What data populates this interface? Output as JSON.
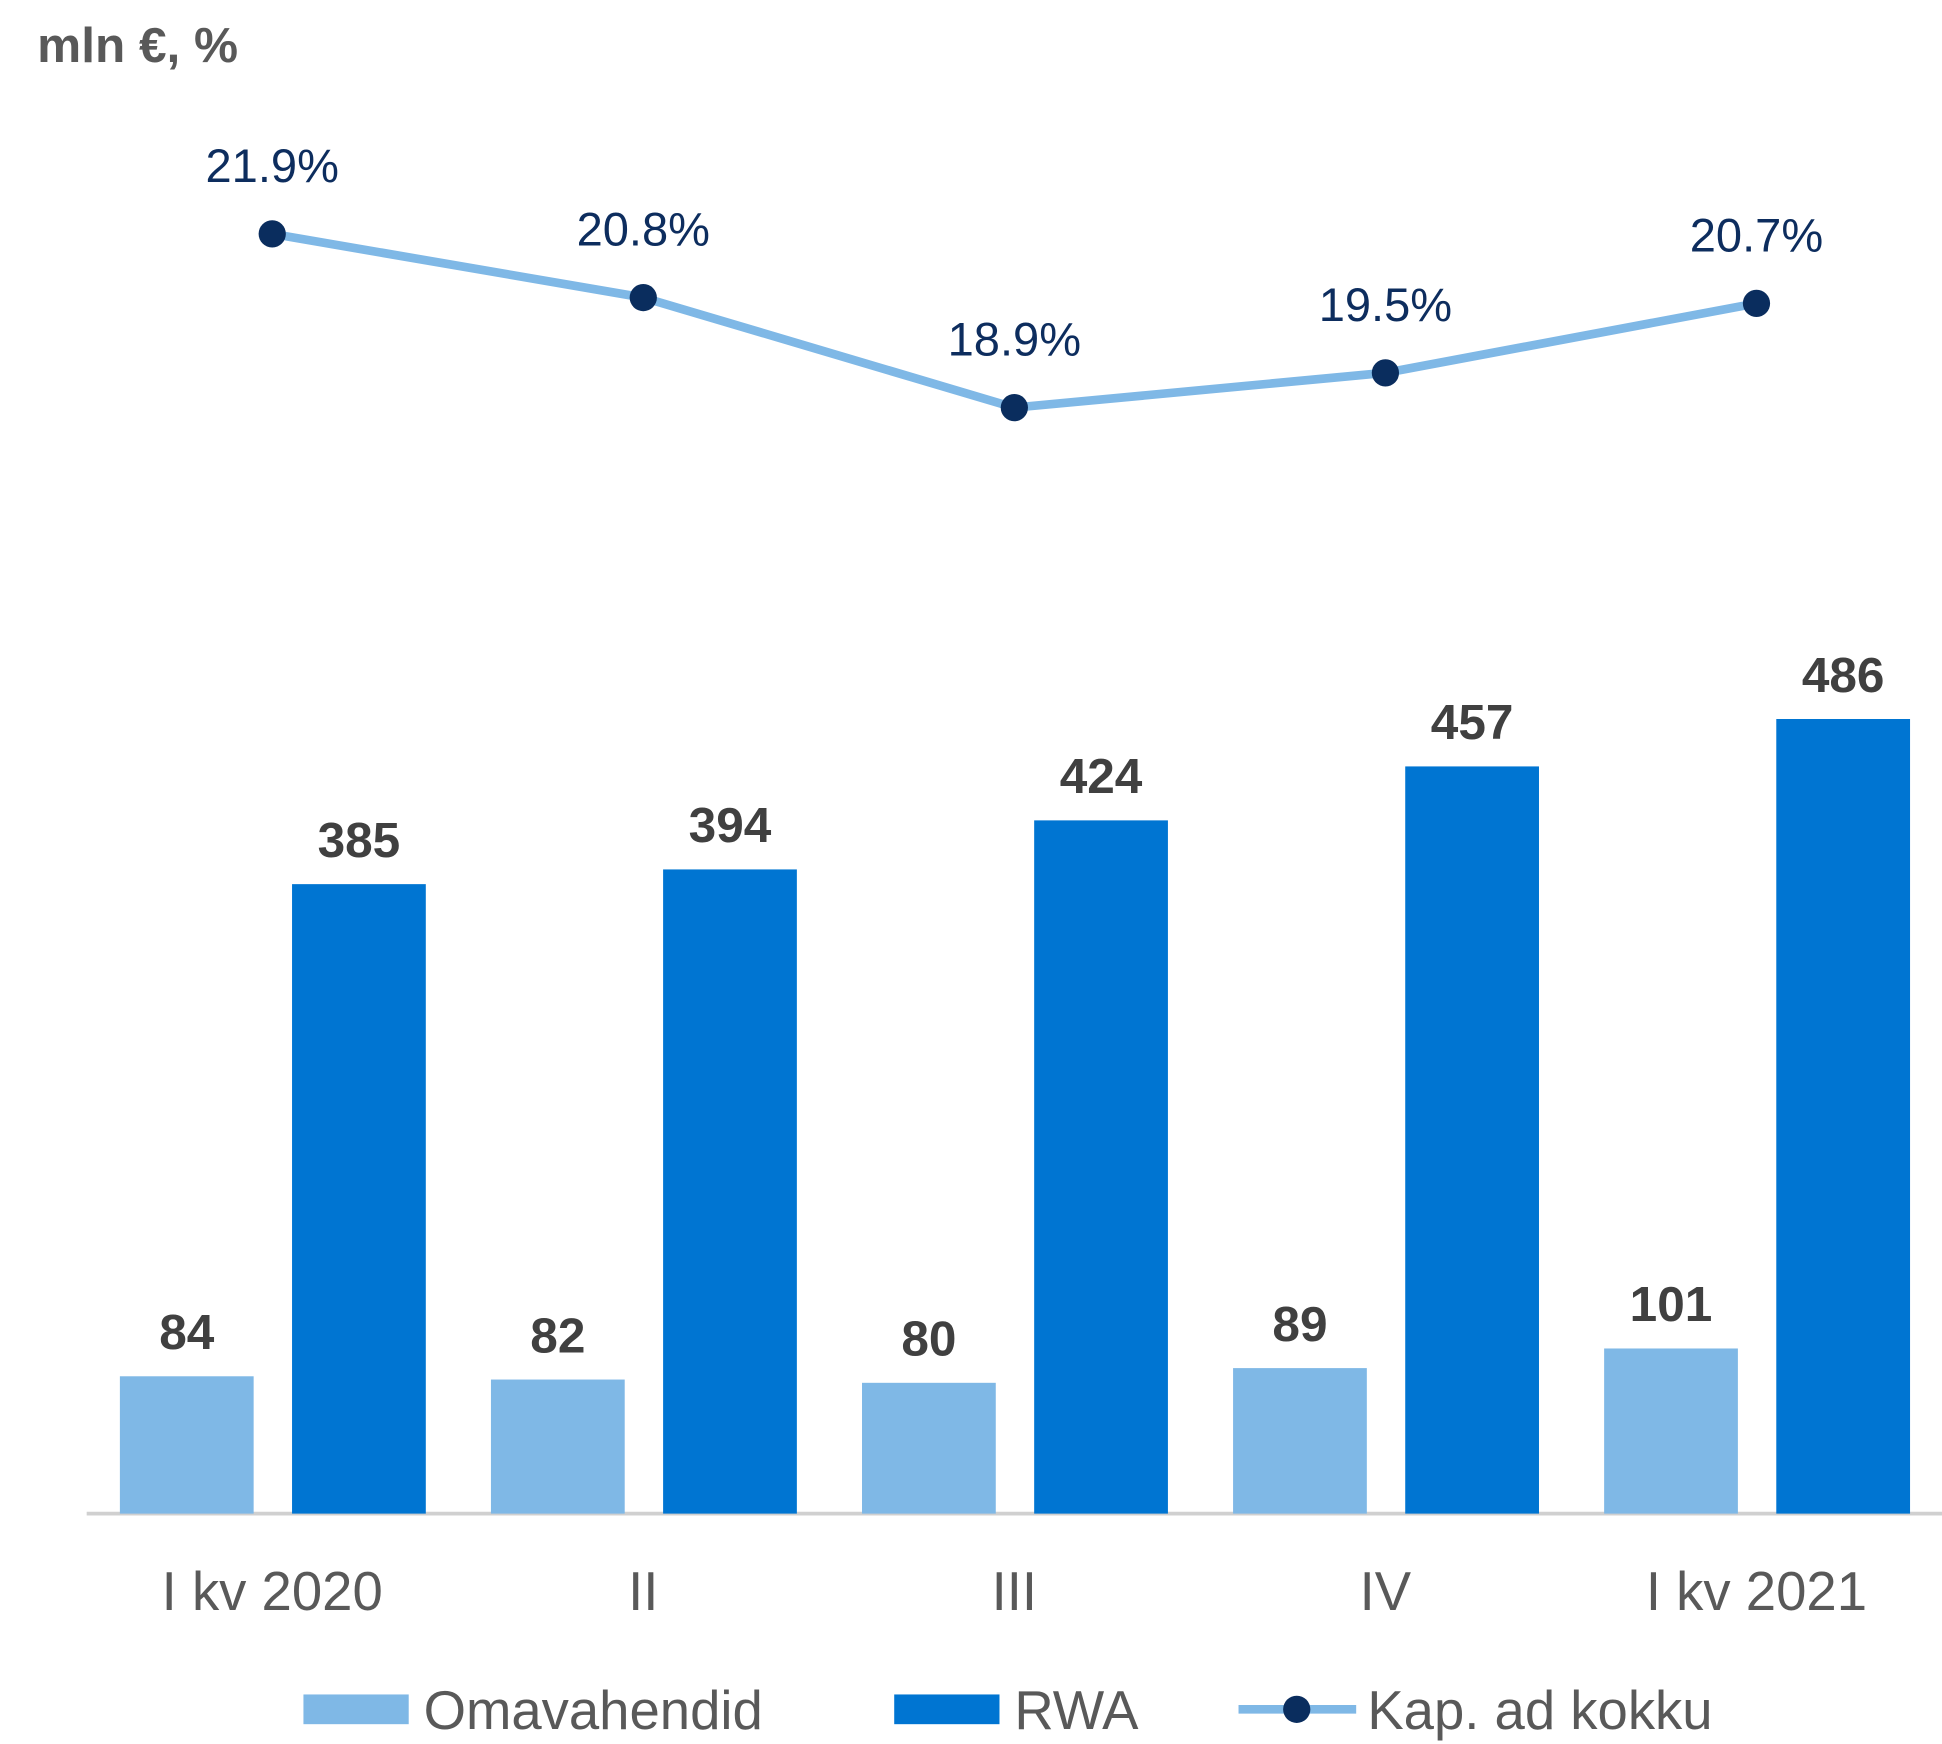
{
  "chart_data": {
    "type": "bar",
    "title": "mln €, %",
    "categories": [
      "I kv 2020",
      "II",
      "III",
      "IV",
      "I kv 2021"
    ],
    "series": [
      {
        "name": "Omavahendid",
        "color": "#7fb8e6",
        "values": [
          84,
          82,
          80,
          89,
          101
        ]
      },
      {
        "name": "RWA",
        "color": "#0075d2",
        "values": [
          385,
          394,
          424,
          457,
          486
        ]
      },
      {
        "name": "Kap. ad kokku",
        "type": "line",
        "axis": "y2",
        "color": "#7fb8e6",
        "marker_color": "#0a2d5e",
        "values": [
          21.9,
          20.8,
          18.9,
          19.5,
          20.7
        ],
        "value_labels": [
          "21.9%",
          "20.8%",
          "18.9%",
          "19.5%",
          "20.7%"
        ]
      }
    ],
    "ylim": [
      0,
      850
    ],
    "y2lim": [
      -0.2,
      23.8
    ],
    "grid": false,
    "legend": "bottom"
  }
}
